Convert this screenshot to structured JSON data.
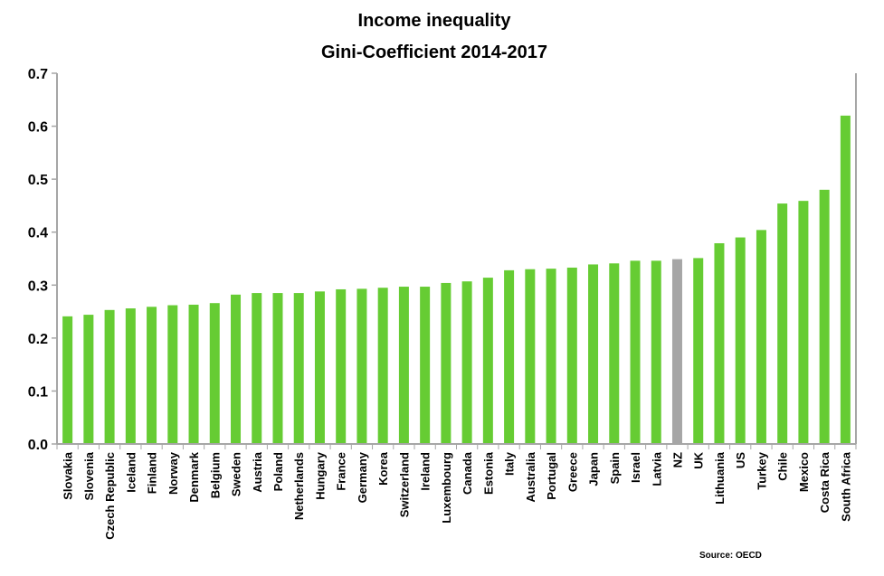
{
  "chart_data": {
    "type": "bar",
    "title": [
      "Income inequality",
      "Gini-Coefficient 2014-2017"
    ],
    "xlabel": "",
    "ylabel": "",
    "ylim": [
      0,
      0.7
    ],
    "yticks": [
      "0.0",
      "0.1",
      "0.2",
      "0.3",
      "0.4",
      "0.5",
      "0.6",
      "0.7"
    ],
    "grid": false,
    "categories": [
      "Slovakia",
      "Slovenia",
      "Czech Republic",
      "Iceland",
      "Finland",
      "Norway",
      "Denmark",
      "Belgium",
      "Sweden",
      "Austria",
      "Poland",
      "Netherlands",
      "Hungary",
      "France",
      "Germany",
      "Korea",
      "Switzerland",
      "Ireland",
      "Luxembourg",
      "Canada",
      "Estonia",
      "Italy",
      "Australia",
      "Portugal",
      "Greece",
      "Japan",
      "Spain",
      "Israel",
      "Latvia",
      "NZ",
      "UK",
      "Lithuania",
      "US",
      "Turkey",
      "Chile",
      "Mexico",
      "Costa Rica",
      "South Africa"
    ],
    "values": [
      0.241,
      0.244,
      0.253,
      0.256,
      0.259,
      0.262,
      0.263,
      0.266,
      0.282,
      0.285,
      0.285,
      0.285,
      0.288,
      0.292,
      0.293,
      0.295,
      0.297,
      0.297,
      0.304,
      0.307,
      0.314,
      0.328,
      0.33,
      0.331,
      0.333,
      0.339,
      0.341,
      0.346,
      0.346,
      0.349,
      0.351,
      0.379,
      0.39,
      0.404,
      0.454,
      0.459,
      0.48,
      0.62
    ],
    "highlight": "NZ",
    "colors": {
      "bar": "#66cc33",
      "highlight": "#a6a6a6",
      "axis": "#a6a6a6"
    },
    "source": "Source:  OECD"
  }
}
